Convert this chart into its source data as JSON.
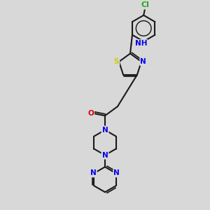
{
  "background_color": "#d8d8d8",
  "bond_color": "#1a1a1a",
  "atom_colors": {
    "N": "#0000ee",
    "S": "#cccc00",
    "O": "#dd0000",
    "Cl": "#22aa22",
    "C": "#1a1a1a"
  },
  "figsize": [
    3.0,
    3.0
  ],
  "dpi": 100,
  "lw": 1.5,
  "fs": 7.5
}
